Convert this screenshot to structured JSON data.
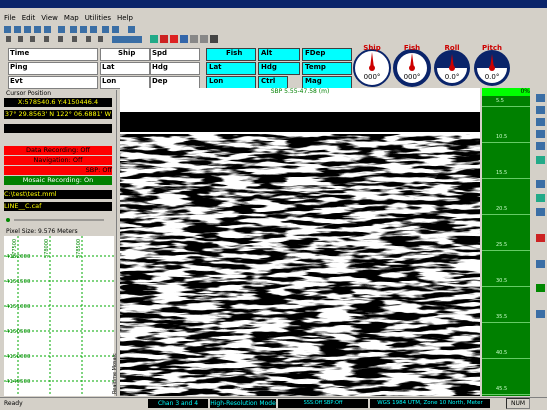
{
  "menu": [
    "File",
    "Edit",
    "View",
    "Map",
    "Utilities",
    "Help"
  ],
  "instruments": {
    "left": [
      "Time",
      "Ship",
      "Spd",
      "Ping",
      "Lat",
      "Hdg",
      "Evt",
      "Lon",
      "Dep"
    ],
    "fish": [
      "Fish",
      "Alt",
      "FDep",
      "Lat",
      "Hdg",
      "Temp",
      "Lon",
      "Ctrl",
      "Mag"
    ]
  },
  "gauges": [
    {
      "name": "Ship",
      "value": "000°"
    },
    {
      "name": "Fish",
      "value": "000°"
    },
    {
      "name": "Roll",
      "value": "0.0°"
    },
    {
      "name": "Pitch",
      "value": "0.0°"
    }
  ],
  "left_panel": {
    "cursor_title": "Cursor Position",
    "xy": "X:578540.6 Y:4150446.4",
    "latlon": "37° 29.8563' N  122° 06.6881' W",
    "status": [
      "Data Recording: Off",
      "Navigation: Off",
      "SBP: Off",
      "Mosaic Recording: On"
    ],
    "files": [
      "C:\\test\\test.mml",
      "LINE__C.caf"
    ],
    "pixel_size": "Pixel Size: 9.576 Meters",
    "grid_x": [
      "577500",
      "578000",
      "578500"
    ],
    "grid_y": [
      "4152000",
      "4151500",
      "4151000",
      "4150500",
      "4150000",
      "4149500"
    ]
  },
  "image": {
    "title": "SBP 5.55-47.58 (m)",
    "side_label": "Realtime Mosaic",
    "percent": "0%",
    "depth_labels": [
      "5.5",
      "10.5",
      "15.5",
      "20.5",
      "25.5",
      "30.5",
      "35.5",
      "40.5",
      "45.5"
    ]
  },
  "status_bar": [
    "Ready",
    "Chan 3 and 4",
    "High-Resolution Mode",
    "SSS:Off   SBP:Off",
    "WGS 1984 UTM, Zone 10 North, Meter",
    "NUM"
  ]
}
